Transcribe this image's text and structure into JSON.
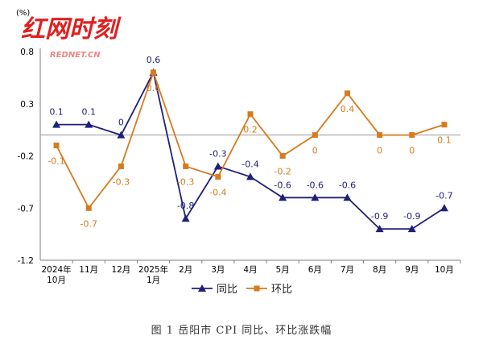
{
  "watermark": {
    "main": "红网时刻",
    "sub": "REDNET.CN"
  },
  "caption": "图 1   岳阳市 CPI 同比、环比涨跌幅",
  "colors": {
    "yoy": "#1f1f7a",
    "mom": "#d77a1e",
    "axis": "#7f7f7f",
    "baseline": "#9a9a9a"
  },
  "chart_data": {
    "type": "line",
    "unit_label": "(%)",
    "categories": [
      [
        "2024年",
        "10月"
      ],
      [
        "11月"
      ],
      [
        "12月"
      ],
      [
        "2025年",
        "1月"
      ],
      [
        "2月"
      ],
      [
        "3月"
      ],
      [
        "4月"
      ],
      [
        "5月"
      ],
      [
        "6月"
      ],
      [
        "7月"
      ],
      [
        "8月"
      ],
      [
        "9月"
      ],
      [
        "10月"
      ]
    ],
    "yticks": [
      "0.8",
      "0.3",
      "-0.2",
      "-0.7",
      "-1.2"
    ],
    "ylim": [
      -1.2,
      0.8
    ],
    "series": [
      {
        "name": "同比",
        "color": "#1f1f7a",
        "marker": "triangle",
        "values": [
          0.1,
          0.1,
          0,
          0.6,
          -0.8,
          -0.3,
          -0.4,
          -0.6,
          -0.6,
          -0.6,
          -0.9,
          -0.9,
          -0.7
        ],
        "labels": [
          "0.1",
          "0.1",
          "0",
          "0.6",
          "-0.8",
          "-0.3",
          "-0.4",
          "-0.6",
          "-0.6",
          "-0.6",
          "-0.9",
          "-0.9",
          "-0.7"
        ]
      },
      {
        "name": "环比",
        "color": "#d77a1e",
        "marker": "square",
        "values": [
          -0.1,
          -0.7,
          -0.3,
          0.6,
          -0.3,
          -0.4,
          0.2,
          -0.2,
          0,
          0.4,
          0,
          0,
          0.1
        ],
        "labels": [
          "-0.1",
          "-0.7",
          "-0.3",
          "0.6",
          "-0.3",
          "-0.4",
          "0.2",
          "-0.2",
          "0",
          "0.4",
          "0",
          "0",
          "0.1"
        ]
      }
    ],
    "legend": "bottom-center",
    "grid": false
  }
}
